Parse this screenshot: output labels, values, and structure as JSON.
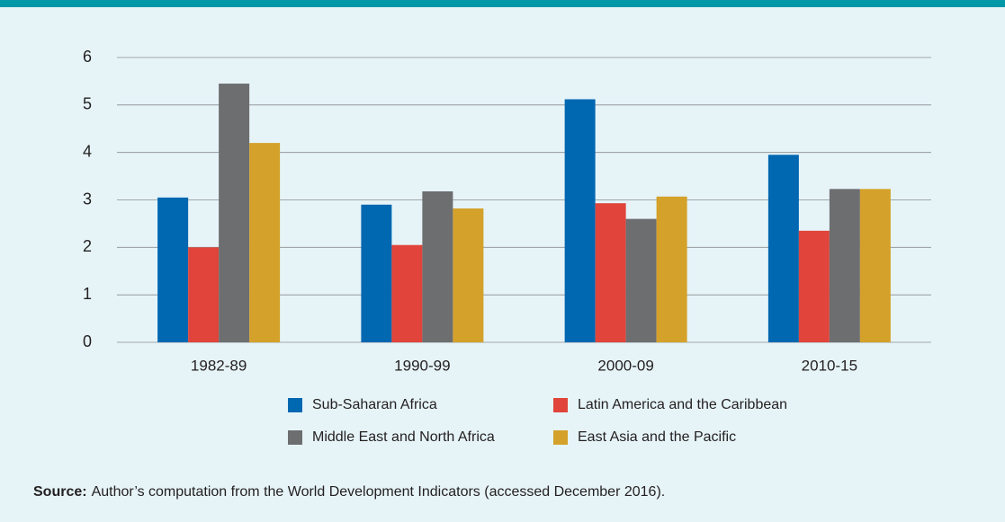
{
  "chart_data": {
    "type": "bar",
    "categories": [
      "1982-89",
      "1990-99",
      "2000-09",
      "2010-15"
    ],
    "series": [
      {
        "name": "Sub-Saharan Africa",
        "color": "#0067b1",
        "values": [
          3.05,
          2.9,
          5.12,
          3.95
        ]
      },
      {
        "name": "Latin America and the Caribbean",
        "color": "#e0443a",
        "values": [
          2.0,
          2.05,
          2.93,
          2.35
        ]
      },
      {
        "name": "Middle East and North Africa",
        "color": "#6d6e70",
        "values": [
          5.45,
          3.18,
          2.6,
          3.23
        ]
      },
      {
        "name": "East Asia and the Pacific",
        "color": "#d4a12a",
        "values": [
          4.2,
          2.82,
          3.07,
          3.23
        ]
      }
    ],
    "ylim": [
      0,
      6
    ],
    "yticks": [
      0,
      1,
      2,
      3,
      4,
      5,
      6
    ],
    "grid": true,
    "source_label": "Source:",
    "source_text": "Author’s computation from the World Development Indicators (accessed December 2016)."
  }
}
